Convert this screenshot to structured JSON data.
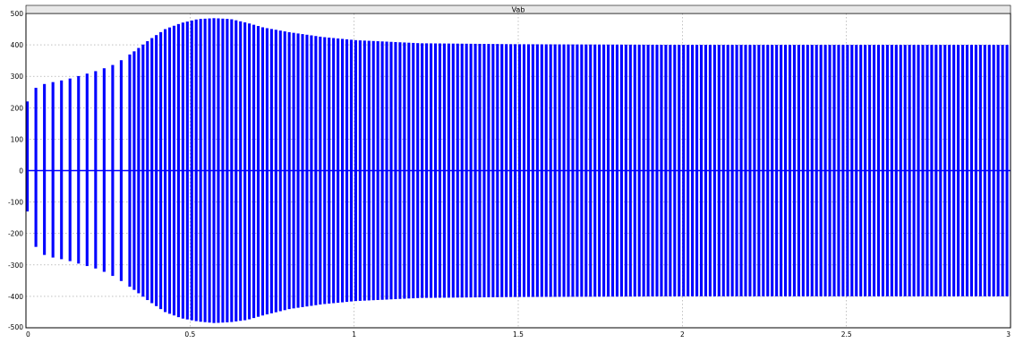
{
  "chart_data": {
    "type": "line",
    "title": "Vab",
    "xlabel": "",
    "ylabel": "",
    "xlim": [
      0,
      3
    ],
    "ylim": [
      -500,
      500
    ],
    "x_ticks": [
      "0",
      "0.5",
      "1",
      "1.5",
      "2",
      "2.5",
      "3"
    ],
    "y_ticks": [
      "500",
      "400",
      "300",
      "200",
      "100",
      "0",
      "-100",
      "-200",
      "-300",
      "-400",
      "-500"
    ],
    "grid": true,
    "series": [
      {
        "name": "",
        "color": "#0000ff",
        "pulses": [
          {
            "t": 0.0,
            "pos": 220,
            "neg": -130
          },
          {
            "t": 0.03,
            "pos": 270,
            "neg": -260
          },
          {
            "t": 0.07,
            "pos": 280,
            "neg": -275
          },
          {
            "t": 0.12,
            "pos": 290,
            "neg": -285
          },
          {
            "t": 0.17,
            "pos": 305,
            "neg": -300
          },
          {
            "t": 0.22,
            "pos": 320,
            "neg": -315
          },
          {
            "t": 0.27,
            "pos": 340,
            "neg": -340
          },
          {
            "t": 0.32,
            "pos": 375,
            "neg": -375
          },
          {
            "t": 0.37,
            "pos": 415,
            "neg": -415
          },
          {
            "t": 0.42,
            "pos": 450,
            "neg": -450
          },
          {
            "t": 0.47,
            "pos": 470,
            "neg": -470
          },
          {
            "t": 0.52,
            "pos": 482,
            "neg": -480
          },
          {
            "t": 0.57,
            "pos": 485,
            "neg": -485
          },
          {
            "t": 0.62,
            "pos": 482,
            "neg": -482
          },
          {
            "t": 0.67,
            "pos": 470,
            "neg": -475
          },
          {
            "t": 0.72,
            "pos": 455,
            "neg": -460
          },
          {
            "t": 0.8,
            "pos": 440,
            "neg": -440
          },
          {
            "t": 0.9,
            "pos": 425,
            "neg": -425
          },
          {
            "t": 1.0,
            "pos": 415,
            "neg": -415
          },
          {
            "t": 1.2,
            "pos": 405,
            "neg": -405
          },
          {
            "t": 1.5,
            "pos": 402,
            "neg": -402
          },
          {
            "t": 2.0,
            "pos": 400,
            "neg": -400
          },
          {
            "t": 2.5,
            "pos": 400,
            "neg": -400
          },
          {
            "t": 3.0,
            "pos": 400,
            "neg": -400
          }
        ]
      }
    ]
  }
}
